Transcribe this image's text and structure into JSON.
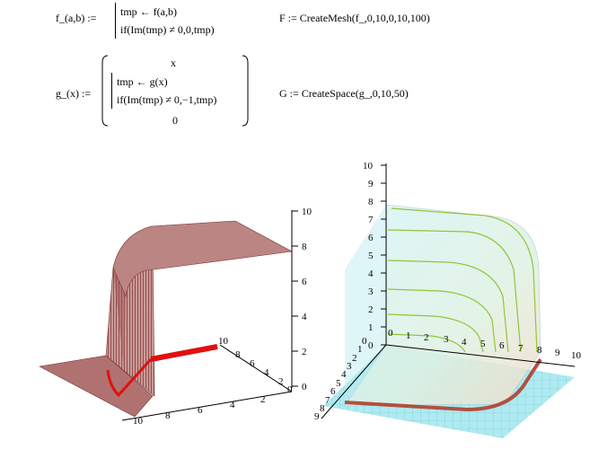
{
  "worksheet": {
    "f_def": {
      "lhs": "f_(a,b) :=",
      "line1": "tmp ← f(a,b)",
      "line2": "if(Im(tmp) ≠ 0,0,tmp)"
    },
    "F_def": "F := CreateMesh(f_,0,10,0,10,100)",
    "g_def": {
      "lhs": "g_(x) :=",
      "top": "x",
      "line1": "tmp ← g(x)",
      "line2": "if(Im(tmp) ≠ 0,−1,tmp)",
      "bottom": "0"
    },
    "G_def": "G := CreateSpace(g_,0,10,50)"
  },
  "plot_left": {
    "z_ticks": [
      "10",
      "8",
      "6",
      "4",
      "2",
      "0"
    ],
    "y_ticks": [
      "10",
      "8",
      "6",
      "4",
      "2",
      "0"
    ],
    "x_ticks": [
      "10",
      "8",
      "6",
      "4",
      "2"
    ],
    "colors": {
      "surface": "#a0504f",
      "curve": "#e01010"
    }
  },
  "plot_right": {
    "z_ticks": [
      "10",
      "9",
      "8",
      "7",
      "6",
      "5",
      "4",
      "3",
      "2",
      "1",
      "0"
    ],
    "x_ticks": [
      "0",
      "1",
      "2",
      "3",
      "4",
      "5",
      "6",
      "7",
      "8",
      "9",
      "10"
    ],
    "y_ticks": [
      "0",
      "1",
      "2",
      "3",
      "4",
      "5",
      "6",
      "7",
      "8",
      "9"
    ],
    "colors": {
      "surface": "#bfeef2",
      "contour": "#8fc63a",
      "floor": "#9fe6ef",
      "curve": "#b05040"
    }
  }
}
